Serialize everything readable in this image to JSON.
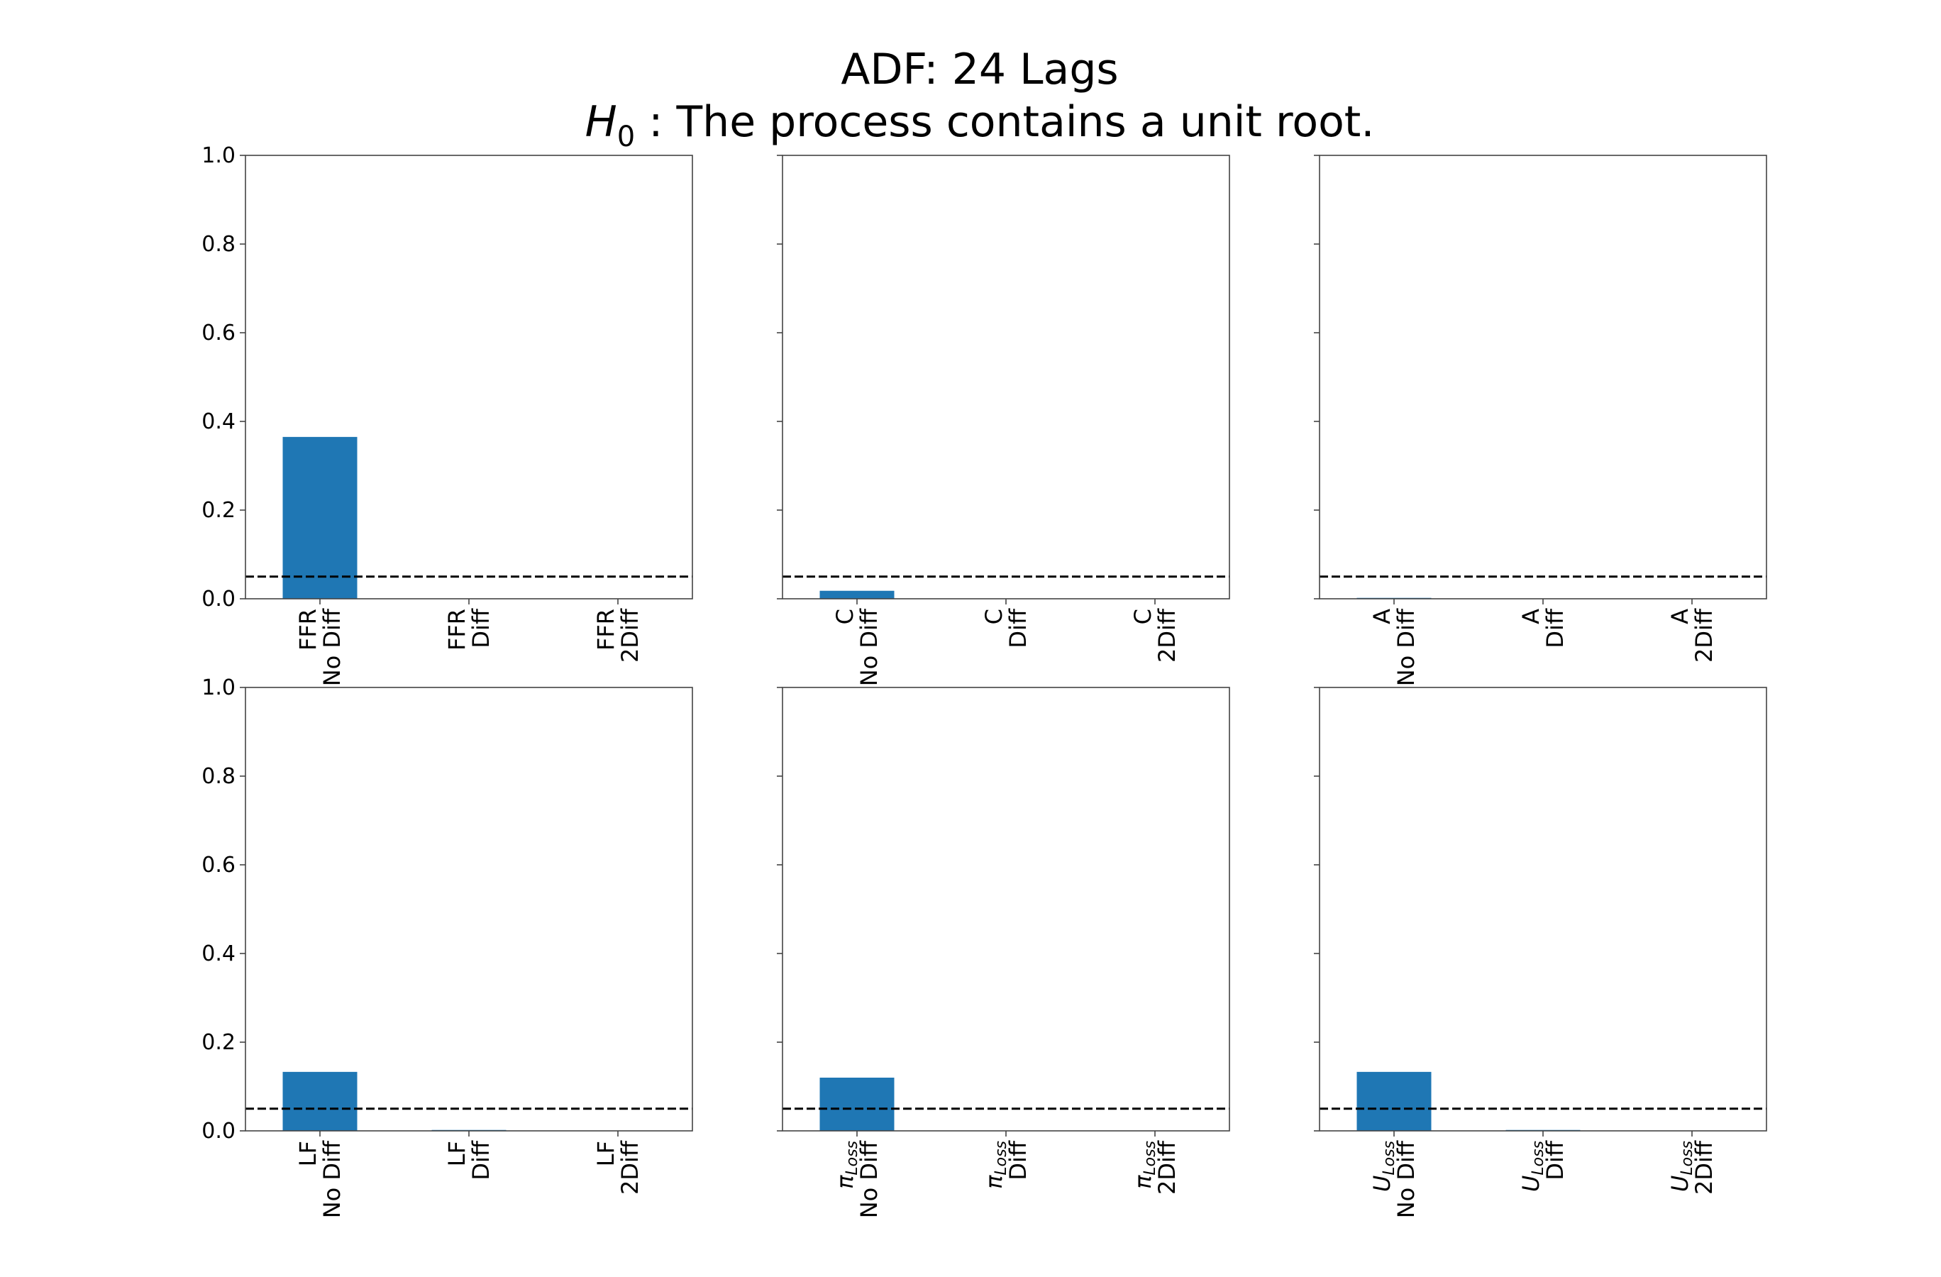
{
  "figure": {
    "title_line1": "ADF: 24 Lags",
    "title_line2_symbol": "H",
    "title_line2_subscript": "0",
    "title_line2_rest": " :  The process contains a unit root.",
    "bar_color": "#1f77b4",
    "threshold_color": "#000000"
  },
  "chart_data": [
    {
      "type": "bar",
      "categories": [
        {
          "var": "FFR",
          "sub": "",
          "diff": "No Diff"
        },
        {
          "var": "FFR",
          "sub": "",
          "diff": "Diff"
        },
        {
          "var": "FFR",
          "sub": "",
          "diff": "2Diff"
        }
      ],
      "values": [
        0.365,
        0.0,
        0.0
      ],
      "ylim": [
        0,
        1
      ],
      "yticks": [
        "0.0",
        "0.2",
        "0.4",
        "0.6",
        "0.8",
        "1.0"
      ],
      "show_ytick_labels": true,
      "threshold": 0.05
    },
    {
      "type": "bar",
      "categories": [
        {
          "var": "C",
          "sub": "",
          "diff": "No Diff"
        },
        {
          "var": "C",
          "sub": "",
          "diff": "Diff"
        },
        {
          "var": "C",
          "sub": "",
          "diff": "2Diff"
        }
      ],
      "values": [
        0.018,
        0.0,
        0.0
      ],
      "ylim": [
        0,
        1
      ],
      "yticks": [
        "0.0",
        "0.2",
        "0.4",
        "0.6",
        "0.8",
        "1.0"
      ],
      "show_ytick_labels": false,
      "threshold": 0.05
    },
    {
      "type": "bar",
      "categories": [
        {
          "var": "A",
          "sub": "",
          "diff": "No Diff"
        },
        {
          "var": "A",
          "sub": "",
          "diff": "Diff"
        },
        {
          "var": "A",
          "sub": "",
          "diff": "2Diff"
        }
      ],
      "values": [
        0.002,
        0.0,
        0.0
      ],
      "ylim": [
        0,
        1
      ],
      "yticks": [
        "0.0",
        "0.2",
        "0.4",
        "0.6",
        "0.8",
        "1.0"
      ],
      "show_ytick_labels": false,
      "threshold": 0.05
    },
    {
      "type": "bar",
      "categories": [
        {
          "var": "LF",
          "sub": "",
          "diff": "No Diff"
        },
        {
          "var": "LF",
          "sub": "",
          "diff": "Diff"
        },
        {
          "var": "LF",
          "sub": "",
          "diff": "2Diff"
        }
      ],
      "values": [
        0.133,
        0.002,
        0.0
      ],
      "ylim": [
        0,
        1
      ],
      "yticks": [
        "0.0",
        "0.2",
        "0.4",
        "0.6",
        "0.8",
        "1.0"
      ],
      "show_ytick_labels": true,
      "threshold": 0.05
    },
    {
      "type": "bar",
      "categories": [
        {
          "var": "π",
          "sub": "Loss",
          "diff": "No Diff"
        },
        {
          "var": "π",
          "sub": "Loss",
          "diff": "Diff"
        },
        {
          "var": "π",
          "sub": "Loss",
          "diff": "2Diff"
        }
      ],
      "values": [
        0.12,
        0.0,
        0.0
      ],
      "ylim": [
        0,
        1
      ],
      "yticks": [
        "0.0",
        "0.2",
        "0.4",
        "0.6",
        "0.8",
        "1.0"
      ],
      "show_ytick_labels": false,
      "threshold": 0.05
    },
    {
      "type": "bar",
      "categories": [
        {
          "var": "U",
          "sub": "Loss",
          "diff": "No Diff"
        },
        {
          "var": "U",
          "sub": "Loss",
          "diff": "Diff"
        },
        {
          "var": "U",
          "sub": "Loss",
          "diff": "2Diff"
        }
      ],
      "values": [
        0.133,
        0.002,
        0.0
      ],
      "ylim": [
        0,
        1
      ],
      "yticks": [
        "0.0",
        "0.2",
        "0.4",
        "0.6",
        "0.8",
        "1.0"
      ],
      "show_ytick_labels": false,
      "threshold": 0.05
    }
  ]
}
